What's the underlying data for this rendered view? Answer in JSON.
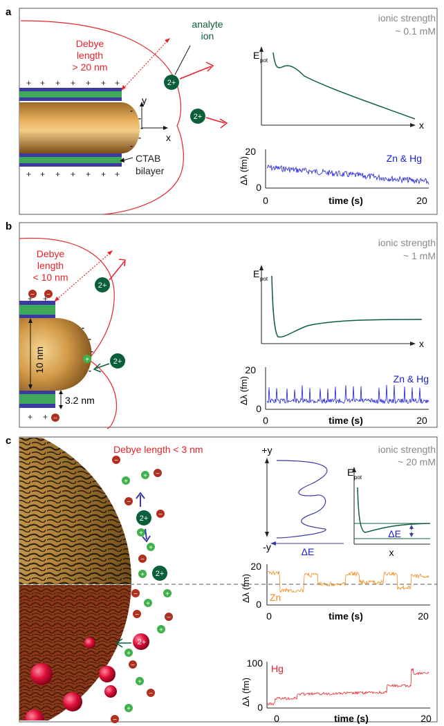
{
  "panels": {
    "a": {
      "label": "a",
      "ionic_strength": [
        "ionic strength",
        "~ 0.1 mM"
      ],
      "debye": [
        "Debye",
        "length",
        "> 20 nm"
      ],
      "analyte": [
        "analyte",
        "ion"
      ],
      "ion_charge": "2+",
      "cbab": [
        "CTAB",
        "bilayer"
      ],
      "axis_y": "y",
      "axis_x": "x",
      "epot_label": "E",
      "epot_sub": "pot",
      "epot_x": "x",
      "trace_label": "Zn & Hg",
      "trace_ylabel": "Δλ (fm)",
      "yticks": [
        "20",
        "0"
      ],
      "xticks": [
        "0",
        "20"
      ],
      "xlabel": "time (s)"
    },
    "b": {
      "label": "b",
      "ionic_strength": [
        "ionic strength",
        "~ 1 mM"
      ],
      "debye": [
        "Debye",
        "length",
        "< 10 nm"
      ],
      "ion_charge": "2+",
      "dim_10": "10 nm",
      "dim_32": "3.2 nm",
      "epot_label": "E",
      "epot_sub": "pot",
      "epot_x": "x",
      "trace_label": "Zn & Hg",
      "trace_ylabel": "Δλ (fm)",
      "yticks": [
        "20",
        "0"
      ],
      "xticks": [
        "0",
        "20"
      ],
      "xlabel": "time (s)"
    },
    "c": {
      "label": "c",
      "debye": "Debye length < 3 nm",
      "ionic_strength": [
        "ionic strength",
        "~ 20 mM"
      ],
      "ion_charge": "2+",
      "plus_y": "+y",
      "minus_y": "-y",
      "delta_e": "ΔE",
      "epot_label": "E",
      "epot_sub": "pot",
      "epot_x": "x",
      "zn_label": "Zn",
      "zn_ylabel": "Δλ (fm)",
      "zn_yticks": [
        "20",
        "0"
      ],
      "zn_xticks": [
        "0",
        "20"
      ],
      "zn_xlabel": "time (s)",
      "hg_label": "Hg",
      "hg_ylabel": "Δλ (fm)",
      "hg_yticks": [
        "100",
        "0"
      ],
      "hg_xticks": [
        "0",
        "20"
      ],
      "hg_xlabel": "time (s)"
    }
  },
  "colors": {
    "red": "#e8202a",
    "grey": "#888888",
    "blue": "#1a1adf",
    "dark_green": "#0b5e3a",
    "orange": "#f08a1c",
    "gold": "#c8913c",
    "cbab_blue": "#3a3aa0",
    "cbab_green": "#3fa85a"
  }
}
